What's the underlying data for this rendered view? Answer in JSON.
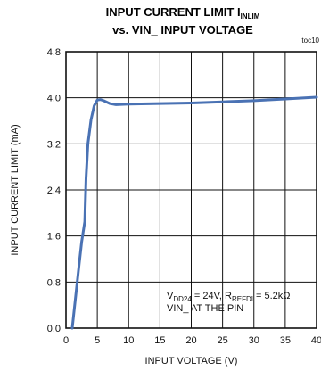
{
  "figure_id": "toc10",
  "chart_data": {
    "type": "line",
    "title_main": "INPUT CURRENT LIMIT I",
    "title_sub": "INLIM",
    "title_line2": "vs. VIN_ INPUT VOLTAGE",
    "xlabel": "INPUT VOLTAGE (V)",
    "ylabel": "INPUT CURRENT LIMIT (mA)",
    "xlim": [
      0,
      40
    ],
    "ylim": [
      0,
      4.8
    ],
    "xticks": [
      0,
      5,
      10,
      15,
      20,
      25,
      30,
      35,
      40
    ],
    "xtick_labels": [
      "0",
      "5",
      "10",
      "15",
      "20",
      "25",
      "30",
      "35",
      "40"
    ],
    "yticks": [
      0,
      0.8,
      1.6,
      2.4,
      3.2,
      4.0,
      4.8
    ],
    "ytick_labels": [
      "0.0",
      "0.8",
      "1.6",
      "2.4",
      "3.2",
      "4.0",
      "4.8"
    ],
    "grid": true,
    "series": [
      {
        "color": "#4a72b4",
        "x": [
          1.0,
          1.5,
          2.0,
          2.5,
          3.0,
          3.2,
          3.5,
          4.0,
          4.5,
          5.0,
          5.5,
          6.0,
          7.0,
          8.0,
          10,
          15,
          20,
          25,
          30,
          35,
          40
        ],
        "y": [
          0.0,
          0.5,
          1.0,
          1.5,
          1.85,
          2.6,
          3.2,
          3.62,
          3.86,
          3.96,
          3.97,
          3.95,
          3.9,
          3.88,
          3.89,
          3.9,
          3.91,
          3.93,
          3.95,
          3.98,
          4.01
        ]
      }
    ],
    "annotation": {
      "line1_parts": [
        {
          "t": "V",
          "sub": false
        },
        {
          "t": "DD24",
          "sub": true
        },
        {
          "t": " = 24V, R",
          "sub": false
        },
        {
          "t": "REFDI",
          "sub": true
        },
        {
          "t": " = 5.2kΩ",
          "sub": false
        }
      ],
      "line2": "VIN_ AT THE PIN"
    }
  }
}
